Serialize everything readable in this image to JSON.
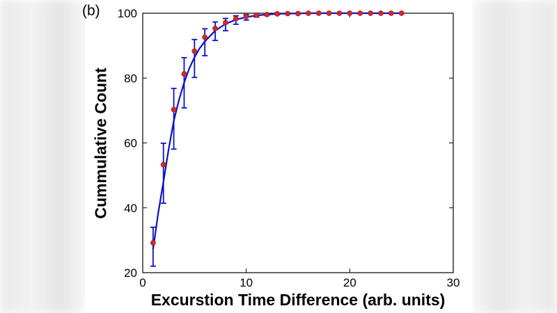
{
  "panel_label": "(b)",
  "colors": {
    "curve": "#0a10c8",
    "errorbar": "#0a10c8",
    "marker": "#cc2b2b",
    "axis": "#000000"
  },
  "chart_data": {
    "type": "scatter",
    "xlabel": "Excurstion Time Difference (arb. units)",
    "ylabel": "Cummulative Count",
    "xlim": [
      0,
      30
    ],
    "ylim": [
      20,
      100
    ],
    "xticks": [
      0,
      10,
      20,
      30
    ],
    "yticks": [
      20,
      40,
      60,
      80,
      100
    ],
    "grid": false,
    "series": [
      {
        "kind": "points-with-errorbars",
        "x": [
          1,
          2,
          3,
          4,
          5,
          6,
          7,
          8,
          9,
          10,
          11,
          12,
          13,
          14,
          15,
          16,
          17,
          18,
          19,
          20,
          21,
          22,
          23,
          24,
          25
        ],
        "y": [
          29.2,
          53.3,
          70.3,
          81.3,
          88.3,
          92.6,
          95.3,
          97.1,
          98.3,
          99.0,
          99.4,
          99.6,
          99.8,
          99.9,
          99.9,
          100,
          100,
          100,
          100,
          100,
          100,
          100,
          100,
          100,
          100
        ],
        "err_low": [
          22.0,
          41.4,
          58.1,
          70.8,
          80.2,
          86.9,
          91.6,
          94.6,
          96.6,
          97.9,
          98.8,
          99.3,
          99.6,
          99.7,
          99.8,
          99.9,
          99.9,
          100,
          100,
          100,
          100,
          100,
          100,
          100,
          100
        ],
        "err_high": [
          34.0,
          59.9,
          76.8,
          86.3,
          91.9,
          95.2,
          97.3,
          98.4,
          99.2,
          99.6,
          99.8,
          99.9,
          100,
          100,
          100,
          100,
          100,
          100,
          100,
          100,
          100,
          100,
          100,
          100,
          100
        ]
      },
      {
        "kind": "fit-curve",
        "x": [
          1,
          1.5,
          2,
          2.5,
          3,
          3.5,
          4,
          4.5,
          5,
          5.5,
          6,
          7,
          8,
          9,
          10,
          11,
          12,
          13,
          14,
          16,
          18,
          20,
          22,
          25
        ],
        "y": [
          27.2,
          38.5,
          48.0,
          58.0,
          66.8,
          73.2,
          78.6,
          83.0,
          86.4,
          89.2,
          91.3,
          94.6,
          96.7,
          98.0,
          98.8,
          99.3,
          99.6,
          99.8,
          99.9,
          100,
          100,
          100,
          100,
          100
        ]
      }
    ]
  }
}
